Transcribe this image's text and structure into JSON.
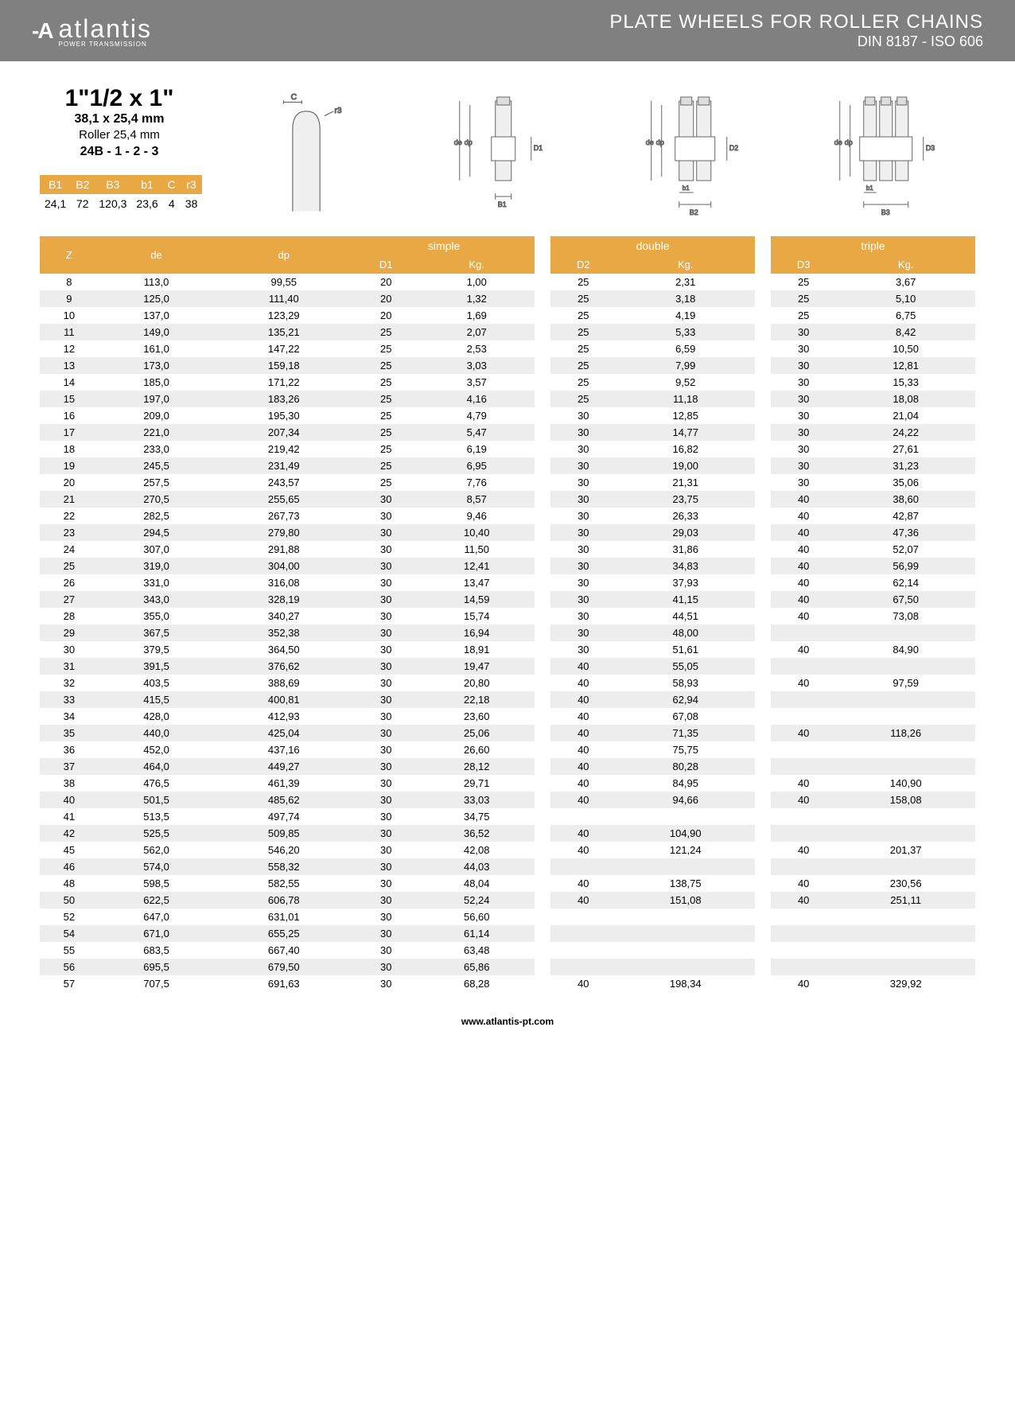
{
  "header": {
    "brand": "atlantis",
    "brand_sub": "POWER TRANSMISSION",
    "title": "PLATE WHEELS FOR ROLLER CHAINS",
    "subtitle": "DIN 8187 - ISO 606"
  },
  "spec": {
    "main": "1\"1/2 x 1\"",
    "mm": "38,1 x 25,4 mm",
    "roller": "Roller 25,4 mm",
    "code": "24B - 1 - 2 - 3",
    "headers": [
      "B1",
      "B2",
      "B3",
      "b1",
      "C",
      "r3"
    ],
    "values": [
      "24,1",
      "72",
      "120,3",
      "23,6",
      "4",
      "38"
    ]
  },
  "colors": {
    "header_bg": "#808080",
    "accent": "#e8a843",
    "stripe": "#ededed"
  },
  "table": {
    "group_headers": [
      "simple",
      "double",
      "triple"
    ],
    "col_headers": [
      "Z",
      "de",
      "dp",
      "D1",
      "Kg.",
      "D2",
      "Kg.",
      "D3",
      "Kg."
    ],
    "rows": [
      [
        "8",
        "113,0",
        "99,55",
        "20",
        "1,00",
        "25",
        "2,31",
        "25",
        "3,67"
      ],
      [
        "9",
        "125,0",
        "111,40",
        "20",
        "1,32",
        "25",
        "3,18",
        "25",
        "5,10"
      ],
      [
        "10",
        "137,0",
        "123,29",
        "20",
        "1,69",
        "25",
        "4,19",
        "25",
        "6,75"
      ],
      [
        "11",
        "149,0",
        "135,21",
        "25",
        "2,07",
        "25",
        "5,33",
        "30",
        "8,42"
      ],
      [
        "12",
        "161,0",
        "147,22",
        "25",
        "2,53",
        "25",
        "6,59",
        "30",
        "10,50"
      ],
      [
        "13",
        "173,0",
        "159,18",
        "25",
        "3,03",
        "25",
        "7,99",
        "30",
        "12,81"
      ],
      [
        "14",
        "185,0",
        "171,22",
        "25",
        "3,57",
        "25",
        "9,52",
        "30",
        "15,33"
      ],
      [
        "15",
        "197,0",
        "183,26",
        "25",
        "4,16",
        "25",
        "11,18",
        "30",
        "18,08"
      ],
      [
        "16",
        "209,0",
        "195,30",
        "25",
        "4,79",
        "30",
        "12,85",
        "30",
        "21,04"
      ],
      [
        "17",
        "221,0",
        "207,34",
        "25",
        "5,47",
        "30",
        "14,77",
        "30",
        "24,22"
      ],
      [
        "18",
        "233,0",
        "219,42",
        "25",
        "6,19",
        "30",
        "16,82",
        "30",
        "27,61"
      ],
      [
        "19",
        "245,5",
        "231,49",
        "25",
        "6,95",
        "30",
        "19,00",
        "30",
        "31,23"
      ],
      [
        "20",
        "257,5",
        "243,57",
        "25",
        "7,76",
        "30",
        "21,31",
        "30",
        "35,06"
      ],
      [
        "21",
        "270,5",
        "255,65",
        "30",
        "8,57",
        "30",
        "23,75",
        "40",
        "38,60"
      ],
      [
        "22",
        "282,5",
        "267,73",
        "30",
        "9,46",
        "30",
        "26,33",
        "40",
        "42,87"
      ],
      [
        "23",
        "294,5",
        "279,80",
        "30",
        "10,40",
        "30",
        "29,03",
        "40",
        "47,36"
      ],
      [
        "24",
        "307,0",
        "291,88",
        "30",
        "11,50",
        "30",
        "31,86",
        "40",
        "52,07"
      ],
      [
        "25",
        "319,0",
        "304,00",
        "30",
        "12,41",
        "30",
        "34,83",
        "40",
        "56,99"
      ],
      [
        "26",
        "331,0",
        "316,08",
        "30",
        "13,47",
        "30",
        "37,93",
        "40",
        "62,14"
      ],
      [
        "27",
        "343,0",
        "328,19",
        "30",
        "14,59",
        "30",
        "41,15",
        "40",
        "67,50"
      ],
      [
        "28",
        "355,0",
        "340,27",
        "30",
        "15,74",
        "30",
        "44,51",
        "40",
        "73,08"
      ],
      [
        "29",
        "367,5",
        "352,38",
        "30",
        "16,94",
        "30",
        "48,00",
        "",
        ""
      ],
      [
        "30",
        "379,5",
        "364,50",
        "30",
        "18,91",
        "30",
        "51,61",
        "40",
        "84,90"
      ],
      [
        "31",
        "391,5",
        "376,62",
        "30",
        "19,47",
        "40",
        "55,05",
        "",
        ""
      ],
      [
        "32",
        "403,5",
        "388,69",
        "30",
        "20,80",
        "40",
        "58,93",
        "40",
        "97,59"
      ],
      [
        "33",
        "415,5",
        "400,81",
        "30",
        "22,18",
        "40",
        "62,94",
        "",
        ""
      ],
      [
        "34",
        "428,0",
        "412,93",
        "30",
        "23,60",
        "40",
        "67,08",
        "",
        ""
      ],
      [
        "35",
        "440,0",
        "425,04",
        "30",
        "25,06",
        "40",
        "71,35",
        "40",
        "118,26"
      ],
      [
        "36",
        "452,0",
        "437,16",
        "30",
        "26,60",
        "40",
        "75,75",
        "",
        ""
      ],
      [
        "37",
        "464,0",
        "449,27",
        "30",
        "28,12",
        "40",
        "80,28",
        "",
        ""
      ],
      [
        "38",
        "476,5",
        "461,39",
        "30",
        "29,71",
        "40",
        "84,95",
        "40",
        "140,90"
      ],
      [
        "40",
        "501,5",
        "485,62",
        "30",
        "33,03",
        "40",
        "94,66",
        "40",
        "158,08"
      ],
      [
        "41",
        "513,5",
        "497,74",
        "30",
        "34,75",
        "",
        "",
        "",
        ""
      ],
      [
        "42",
        "525,5",
        "509,85",
        "30",
        "36,52",
        "40",
        "104,90",
        "",
        ""
      ],
      [
        "45",
        "562,0",
        "546,20",
        "30",
        "42,08",
        "40",
        "121,24",
        "40",
        "201,37"
      ],
      [
        "46",
        "574,0",
        "558,32",
        "30",
        "44,03",
        "",
        "",
        "",
        ""
      ],
      [
        "48",
        "598,5",
        "582,55",
        "30",
        "48,04",
        "40",
        "138,75",
        "40",
        "230,56"
      ],
      [
        "50",
        "622,5",
        "606,78",
        "30",
        "52,24",
        "40",
        "151,08",
        "40",
        "251,11"
      ],
      [
        "52",
        "647,0",
        "631,01",
        "30",
        "56,60",
        "",
        "",
        "",
        ""
      ],
      [
        "54",
        "671,0",
        "655,25",
        "30",
        "61,14",
        "",
        "",
        "",
        ""
      ],
      [
        "55",
        "683,5",
        "667,40",
        "30",
        "63,48",
        "",
        "",
        "",
        ""
      ],
      [
        "56",
        "695,5",
        "679,50",
        "30",
        "65,86",
        "",
        "",
        "",
        ""
      ],
      [
        "57",
        "707,5",
        "691,63",
        "30",
        "68,28",
        "40",
        "198,34",
        "40",
        "329,92"
      ]
    ]
  },
  "footer": "www.atlantis-pt.com"
}
